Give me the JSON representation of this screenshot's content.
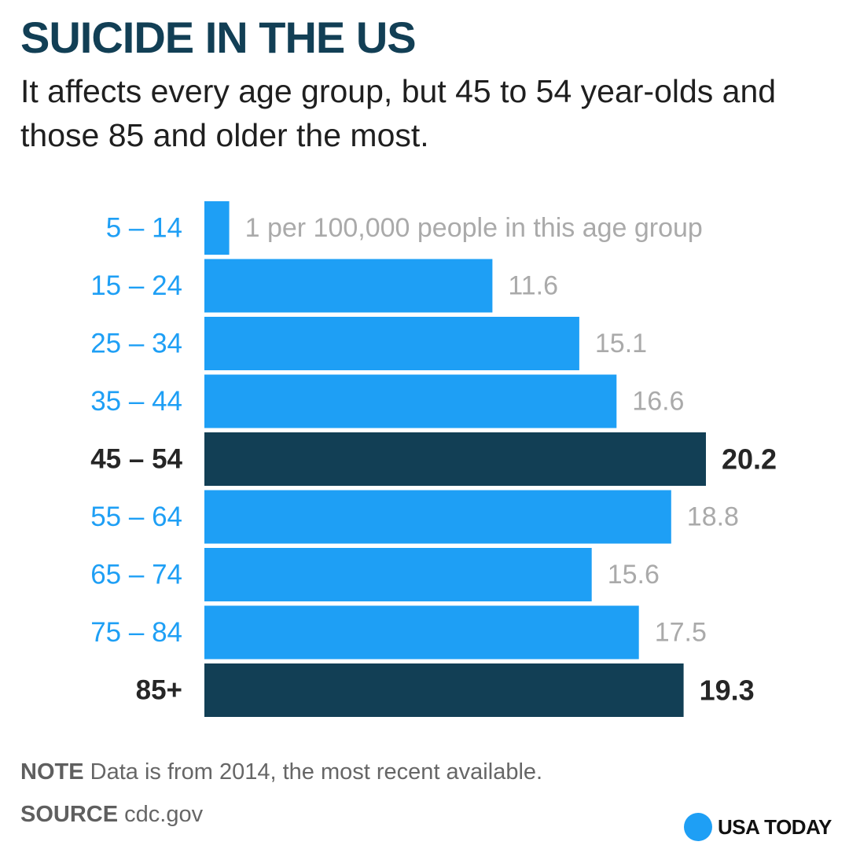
{
  "title": "SUICIDE IN THE US",
  "subtitle": "It affects every age group, but 45 to 54 year-olds and those 85 and older the most.",
  "chart_data": {
    "type": "bar",
    "orientation": "horizontal",
    "title": "SUICIDE IN THE US",
    "unit_label": "per 100,000 people in this age group",
    "categories": [
      "5 – 14",
      "15 – 24",
      "25 – 34",
      "35 – 44",
      "45 – 54",
      "55 – 64",
      "65 – 74",
      "75 – 84",
      "85+"
    ],
    "values": [
      1,
      11.6,
      15.1,
      16.6,
      20.2,
      18.8,
      15.6,
      17.5,
      19.3
    ],
    "value_labels": [
      "1",
      "11.6",
      "15.1",
      "16.6",
      "20.2",
      "18.8",
      "15.6",
      "17.5",
      "19.3"
    ],
    "highlighted": [
      false,
      false,
      false,
      false,
      true,
      false,
      false,
      false,
      true
    ],
    "xlim": [
      0,
      20.2
    ],
    "colors": {
      "bar": "#1e9ff5",
      "highlight_bar": "#123f55",
      "category_label": "#1e9ff5",
      "highlight_category_label": "#262626",
      "value_label": "#aaaaaa",
      "highlight_value_label": "#262626"
    }
  },
  "footer": {
    "note_key": "NOTE",
    "note_text": "Data is from 2014, the most recent available.",
    "source_key": "SOURCE",
    "source_text": "cdc.gov"
  },
  "logo": {
    "text": "USA TODAY",
    "color": "#1e9ff5"
  }
}
